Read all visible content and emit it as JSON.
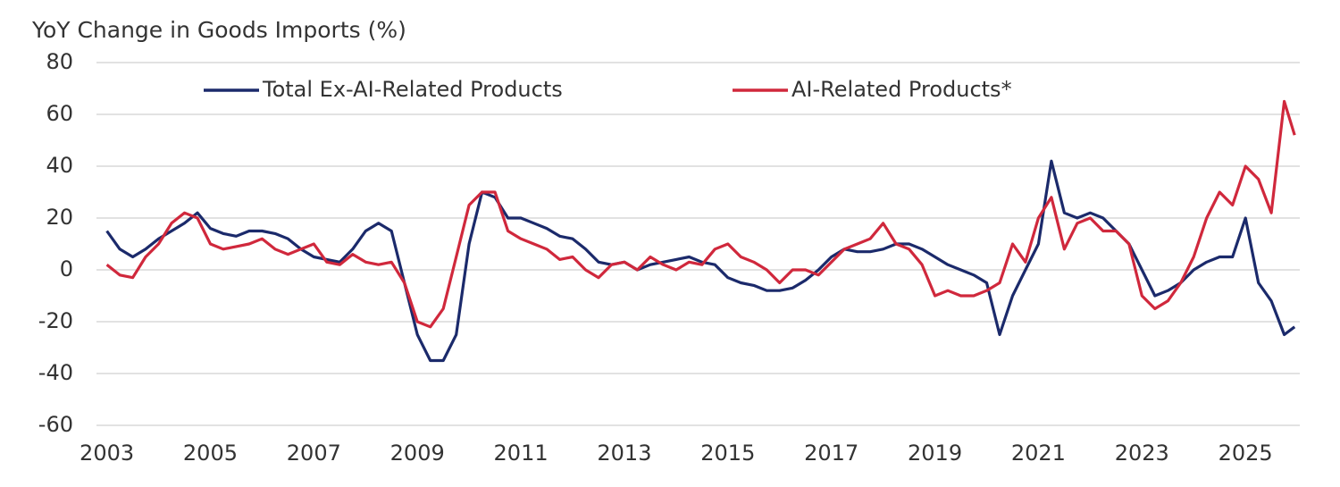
{
  "chart_data": {
    "type": "line",
    "title": "YoY Change in Goods Imports (%)",
    "x": [
      2003.0,
      2003.25,
      2003.5,
      2003.75,
      2004.0,
      2004.25,
      2004.5,
      2004.75,
      2005.0,
      2005.25,
      2005.5,
      2005.75,
      2006.0,
      2006.25,
      2006.5,
      2006.75,
      2007.0,
      2007.25,
      2007.5,
      2007.75,
      2008.0,
      2008.25,
      2008.5,
      2008.75,
      2009.0,
      2009.25,
      2009.5,
      2009.75,
      2010.0,
      2010.25,
      2010.5,
      2010.75,
      2011.0,
      2011.25,
      2011.5,
      2011.75,
      2012.0,
      2012.25,
      2012.5,
      2012.75,
      2013.0,
      2013.25,
      2013.5,
      2013.75,
      2014.0,
      2014.25,
      2014.5,
      2014.75,
      2015.0,
      2015.25,
      2015.5,
      2015.75,
      2016.0,
      2016.25,
      2016.5,
      2016.75,
      2017.0,
      2017.25,
      2017.5,
      2017.75,
      2018.0,
      2018.25,
      2018.5,
      2018.75,
      2019.0,
      2019.25,
      2019.5,
      2019.75,
      2020.0,
      2020.25,
      2020.5,
      2020.75,
      2021.0,
      2021.25,
      2021.5,
      2021.75,
      2022.0,
      2022.25,
      2022.5,
      2022.75,
      2023.0,
      2023.25,
      2023.5,
      2023.75,
      2024.0,
      2024.25,
      2024.5,
      2024.75,
      2025.0,
      2025.25,
      2025.5,
      2025.75,
      2025.95
    ],
    "series": [
      {
        "name": "Total Ex-AI-Related Products",
        "color": "#1b2a6b",
        "values": [
          15,
          8,
          5,
          8,
          12,
          15,
          18,
          22,
          16,
          14,
          13,
          15,
          15,
          14,
          12,
          8,
          5,
          4,
          3,
          8,
          15,
          18,
          15,
          -5,
          -25,
          -35,
          -35,
          -25,
          10,
          30,
          28,
          20,
          20,
          18,
          16,
          13,
          12,
          8,
          3,
          2,
          3,
          0,
          2,
          3,
          4,
          5,
          3,
          2,
          -3,
          -5,
          -6,
          -8,
          -8,
          -7,
          -4,
          0,
          5,
          8,
          7,
          7,
          8,
          10,
          10,
          8,
          5,
          2,
          0,
          -2,
          -5,
          -25,
          -10,
          0,
          10,
          42,
          22,
          20,
          22,
          20,
          15,
          10,
          0,
          -10,
          -8,
          -5,
          0,
          3,
          5,
          5,
          20,
          -5,
          -12,
          -25,
          -22
        ]
      },
      {
        "name": "AI-Related Products*",
        "color": "#d0283c",
        "values": [
          2,
          -2,
          -3,
          5,
          10,
          18,
          22,
          20,
          10,
          8,
          9,
          10,
          12,
          8,
          6,
          8,
          10,
          3,
          2,
          6,
          3,
          2,
          3,
          -5,
          -20,
          -22,
          -15,
          5,
          25,
          30,
          30,
          15,
          12,
          10,
          8,
          4,
          5,
          0,
          -3,
          2,
          3,
          0,
          5,
          2,
          0,
          3,
          2,
          8,
          10,
          5,
          3,
          0,
          -5,
          0,
          0,
          -2,
          3,
          8,
          10,
          12,
          18,
          10,
          8,
          2,
          -10,
          -8,
          -10,
          -10,
          -8,
          -5,
          10,
          3,
          20,
          28,
          8,
          18,
          20,
          15,
          15,
          10,
          -10,
          -15,
          -12,
          -5,
          5,
          20,
          30,
          25,
          40,
          35,
          22,
          65,
          52
        ]
      }
    ],
    "xlim": [
      2002.8,
      2026.05
    ],
    "xticks": [
      2003,
      2005,
      2007,
      2009,
      2011,
      2013,
      2015,
      2017,
      2019,
      2021,
      2023,
      2025
    ],
    "ylim": [
      -60,
      80
    ],
    "yticks": [
      -60,
      -40,
      -20,
      0,
      20,
      40,
      60,
      80
    ],
    "grid": true
  }
}
